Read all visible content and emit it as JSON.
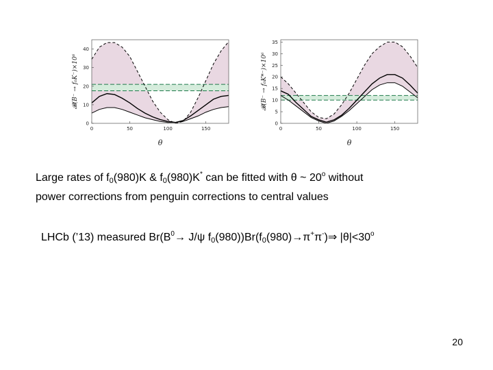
{
  "chart_data": [
    {
      "type": "area",
      "xlabel": "θ",
      "ylabel": "𝓑(B⁻ → f₀K⁻)×10⁶",
      "xlim": [
        0,
        180
      ],
      "ylim": [
        0,
        45
      ],
      "xticks": [
        "0",
        "50",
        "100",
        "150"
      ],
      "yticks": [
        "0",
        "10",
        "20",
        "30",
        "40"
      ],
      "band": {
        "y_low": 17.5,
        "y_high": 21
      },
      "series": [
        {
          "role": "upper-dashed",
          "points": [
            [
              0,
              34.5
            ],
            [
              10,
              41
            ],
            [
              20,
              43.5
            ],
            [
              30,
              43.5
            ],
            [
              40,
              41
            ],
            [
              50,
              36
            ],
            [
              60,
              28
            ],
            [
              70,
              20
            ],
            [
              80,
              12
            ],
            [
              90,
              6
            ],
            [
              100,
              2
            ],
            [
              110,
              0
            ],
            [
              120,
              1
            ],
            [
              130,
              6
            ],
            [
              140,
              14
            ],
            [
              150,
              23
            ],
            [
              160,
              32
            ],
            [
              170,
              39
            ],
            [
              180,
              44
            ]
          ]
        },
        {
          "role": "central-solid",
          "points": [
            [
              0,
              11
            ],
            [
              10,
              14.5
            ],
            [
              20,
              16
            ],
            [
              30,
              15.5
            ],
            [
              40,
              13.5
            ],
            [
              50,
              11
            ],
            [
              60,
              8
            ],
            [
              70,
              5.5
            ],
            [
              80,
              3.5
            ],
            [
              90,
              2
            ],
            [
              100,
              1
            ],
            [
              110,
              0.5
            ],
            [
              120,
              1.5
            ],
            [
              130,
              4
            ],
            [
              140,
              7
            ],
            [
              150,
              10
            ],
            [
              160,
              13
            ],
            [
              170,
              14.5
            ],
            [
              180,
              15
            ]
          ]
        },
        {
          "role": "lower-solid",
          "points": [
            [
              0,
              5.5
            ],
            [
              10,
              7.5
            ],
            [
              20,
              8.5
            ],
            [
              30,
              8.5
            ],
            [
              40,
              7.5
            ],
            [
              50,
              6
            ],
            [
              60,
              4.5
            ],
            [
              70,
              3
            ],
            [
              80,
              2
            ],
            [
              90,
              1
            ],
            [
              100,
              0.5
            ],
            [
              110,
              0.5
            ],
            [
              120,
              1
            ],
            [
              130,
              2.5
            ],
            [
              140,
              4
            ],
            [
              150,
              6
            ],
            [
              160,
              7.5
            ],
            [
              170,
              8.5
            ],
            [
              180,
              9
            ]
          ]
        }
      ]
    },
    {
      "type": "area",
      "xlabel": "θ",
      "ylabel": "𝓑(B⁻ → f₀K*⁻)×10⁶",
      "xlim": [
        0,
        180
      ],
      "ylim": [
        0,
        36
      ],
      "xticks": [
        "0",
        "50",
        "100",
        "150"
      ],
      "yticks": [
        "0",
        "5",
        "10",
        "15",
        "20",
        "25",
        "30",
        "35"
      ],
      "band": {
        "y_low": 10,
        "y_high": 12
      },
      "series": [
        {
          "role": "upper-dashed",
          "points": [
            [
              0,
              20
            ],
            [
              10,
              17
            ],
            [
              20,
              13
            ],
            [
              30,
              9
            ],
            [
              40,
              5
            ],
            [
              50,
              2.5
            ],
            [
              60,
              2
            ],
            [
              70,
              4
            ],
            [
              80,
              8
            ],
            [
              90,
              13
            ],
            [
              100,
              19
            ],
            [
              110,
              25
            ],
            [
              120,
              30
            ],
            [
              130,
              33
            ],
            [
              140,
              35
            ],
            [
              150,
              35
            ],
            [
              160,
              33
            ],
            [
              170,
              29
            ],
            [
              180,
              24
            ]
          ]
        },
        {
          "role": "central-solid",
          "points": [
            [
              0,
              14
            ],
            [
              10,
              12.5
            ],
            [
              20,
              9
            ],
            [
              30,
              6
            ],
            [
              40,
              3
            ],
            [
              50,
              1.5
            ],
            [
              60,
              0.5
            ],
            [
              70,
              1.5
            ],
            [
              80,
              3.5
            ],
            [
              90,
              6.5
            ],
            [
              100,
              10
            ],
            [
              110,
              13.5
            ],
            [
              120,
              17
            ],
            [
              130,
              19.5
            ],
            [
              140,
              21
            ],
            [
              150,
              21
            ],
            [
              160,
              19.5
            ],
            [
              170,
              16.5
            ],
            [
              180,
              13
            ]
          ]
        },
        {
          "role": "lower-solid",
          "points": [
            [
              0,
              12
            ],
            [
              10,
              10
            ],
            [
              20,
              7.5
            ],
            [
              30,
              5
            ],
            [
              40,
              2.5
            ],
            [
              50,
              1
            ],
            [
              60,
              0
            ],
            [
              70,
              1
            ],
            [
              80,
              3
            ],
            [
              90,
              5.5
            ],
            [
              100,
              8.5
            ],
            [
              110,
              11.5
            ],
            [
              120,
              14.5
            ],
            [
              130,
              16.5
            ],
            [
              140,
              17.5
            ],
            [
              150,
              17.5
            ],
            [
              160,
              16
            ],
            [
              170,
              13.5
            ],
            [
              180,
              11
            ]
          ]
        }
      ]
    }
  ],
  "colors": {
    "fill": "#e9d8e2",
    "band_fill": "#d5ecdc",
    "band_line": "#1f7a4a",
    "curve": "#000000"
  },
  "text": {
    "p1_a": "Large rates of f",
    "p1_sub1": "0",
    "p1_b": "(980)K & f",
    "p1_sub2": "0",
    "p1_c": "(980)K",
    "p1_sup1": "*",
    "p1_d": " can be fitted with θ ~ 20",
    "p1_sup2": "o",
    "p1_e": " without",
    "p1_line2": "power corrections from penguin corrections to central values",
    "p2_a": "LHCb (’13) measured Br(B",
    "p2_sup1": "0",
    "p2_b": "→ J/ψ f",
    "p2_sub1": "0",
    "p2_c": "(980))Br(f",
    "p2_sub2": "0",
    "p2_d": "(980)→π",
    "p2_sup2": "+",
    "p2_e": "π",
    "p2_sup3": "-",
    "p2_f": ")⇒ |θ|<30",
    "p2_sup4": "o",
    "page_number": "20"
  }
}
